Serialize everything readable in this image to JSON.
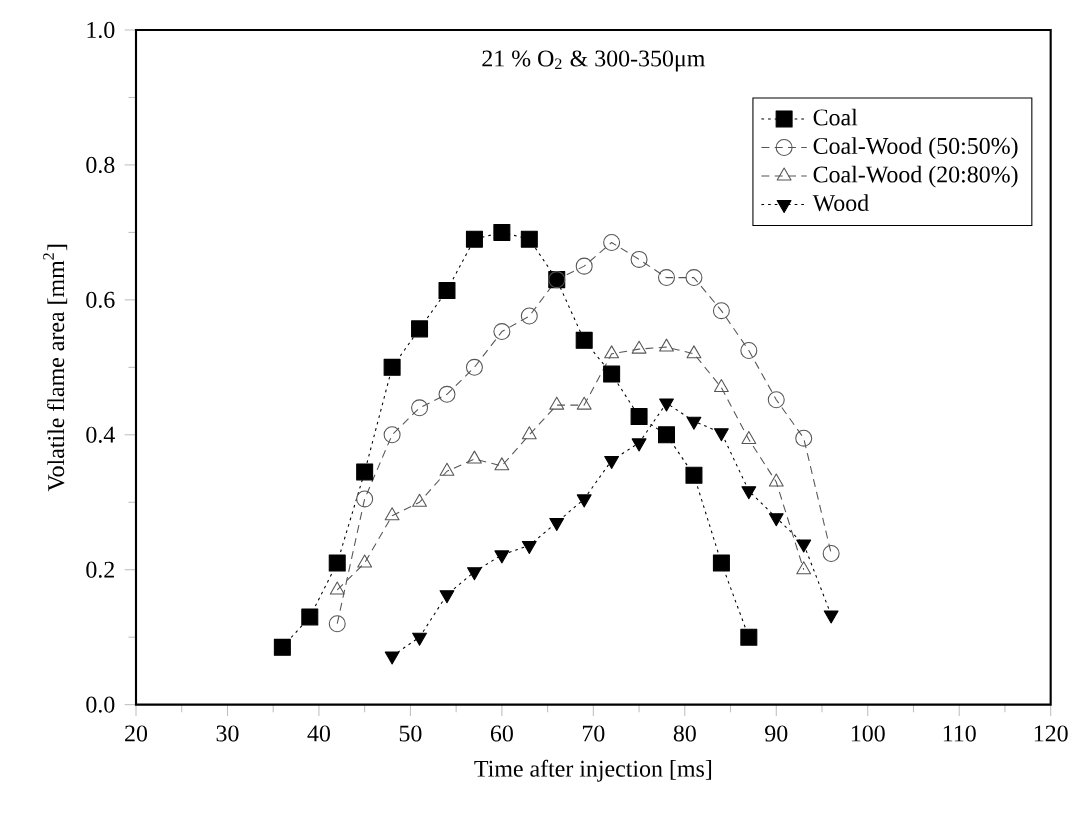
{
  "chart_data": {
    "type": "line",
    "title": "21 % O$_{2}$ & 300-350μm",
    "xlabel": "Time after injection [ms]",
    "ylabel": "Volatile flame area [mm$^{2}$]",
    "xlim": [
      20,
      120
    ],
    "xticks": [
      20,
      30,
      40,
      50,
      60,
      70,
      80,
      90,
      100,
      110,
      120
    ],
    "ylim": [
      0,
      1
    ],
    "yticks": [
      {
        "value": 0,
        "label": "0.0"
      },
      {
        "value": 0.2,
        "label": "0.2"
      },
      {
        "value": 0.4,
        "label": "0.4"
      },
      {
        "value": 0.6,
        "label": "0.6"
      },
      {
        "value": 0.8,
        "label": "0.8"
      },
      {
        "value": 1,
        "label": "1.0"
      }
    ],
    "legend": "top right",
    "grid": false,
    "series": [
      {
        "name": "Coal",
        "color": "#000000",
        "marker": "square",
        "line_style": "dotted",
        "x": [
          36,
          39,
          42,
          45,
          48,
          51,
          54,
          57,
          60,
          63,
          66,
          69,
          72,
          75,
          78,
          81,
          84,
          87
        ],
        "values": [
          0.085,
          0.13,
          0.21,
          0.345,
          0.5,
          0.557,
          0.614,
          0.69,
          0.7,
          0.69,
          0.63,
          0.54,
          0.49,
          0.427,
          0.4,
          0.34,
          0.21,
          0.1
        ]
      },
      {
        "name": "Coal-Wood (50:50%)",
        "color": "#555555",
        "marker": "circle",
        "line_style": "dashed",
        "x": [
          42,
          45,
          48,
          51,
          54,
          57,
          60,
          63,
          66,
          69,
          72,
          75,
          78,
          81,
          84,
          87,
          90,
          93,
          96
        ],
        "values": [
          0.12,
          0.305,
          0.4,
          0.44,
          0.46,
          0.5,
          0.553,
          0.576,
          0.63,
          0.65,
          0.685,
          0.66,
          0.633,
          0.633,
          0.584,
          0.525,
          0.452,
          0.395,
          0.224
        ]
      },
      {
        "name": "Coal-Wood (20:80%)",
        "color": "#555555",
        "marker": "triangle",
        "line_style": "dashed",
        "x": [
          42,
          45,
          48,
          51,
          54,
          57,
          60,
          63,
          66,
          69,
          72,
          75,
          78,
          81,
          84,
          87,
          90,
          93
        ],
        "values": [
          0.17,
          0.21,
          0.28,
          0.3,
          0.346,
          0.364,
          0.354,
          0.4,
          0.444,
          0.444,
          0.52,
          0.527,
          0.53,
          0.52,
          0.47,
          0.393,
          0.33,
          0.2
        ]
      },
      {
        "name": "Wood",
        "color": "#000000",
        "marker": "triangle-down",
        "line_style": "dotted",
        "x": [
          48,
          51,
          54,
          57,
          60,
          63,
          66,
          69,
          72,
          75,
          78,
          81,
          84,
          87,
          90,
          93,
          96
        ],
        "values": [
          0.072,
          0.1,
          0.163,
          0.197,
          0.222,
          0.236,
          0.27,
          0.305,
          0.362,
          0.388,
          0.447,
          0.42,
          0.403,
          0.317,
          0.277,
          0.238,
          0.133
        ]
      }
    ]
  }
}
